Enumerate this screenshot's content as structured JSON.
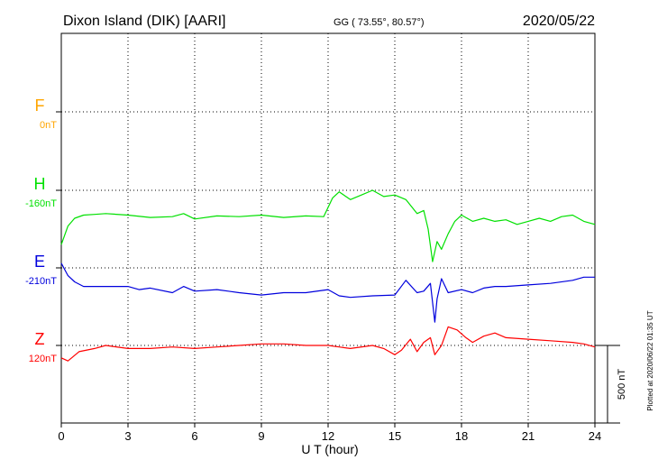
{
  "chart_data": {
    "type": "line",
    "title": "Dixon Island (DIK)  [AARI]",
    "subtitle": "GG ( 73.55°,  80.57°)",
    "date": "2020/05/22",
    "xlabel": "U T (hour)",
    "xlim": [
      0,
      24
    ],
    "xticks": [
      "0",
      "3",
      "6",
      "9",
      "12",
      "15",
      "18",
      "21",
      "24"
    ],
    "grid": true,
    "scale_bar": {
      "label": "500 nT",
      "value": 500
    },
    "footnote": "Plotted at 2020/06/22 01:35 UT",
    "series": [
      {
        "name": "F",
        "baseline_label": "0nT",
        "color": "#ffa500",
        "x": [],
        "y": []
      },
      {
        "name": "H",
        "baseline_label": "-160nT",
        "color": "#00e000",
        "x": [
          0,
          0.3,
          0.6,
          1,
          1.5,
          2,
          3,
          4,
          5,
          5.5,
          6,
          7,
          8,
          9,
          10,
          11,
          11.8,
          12.2,
          12.5,
          13,
          13.5,
          14,
          14.5,
          15,
          15.5,
          16,
          16.3,
          16.5,
          16.7,
          16.9,
          17.1,
          17.4,
          17.7,
          18,
          18.5,
          19,
          19.5,
          20,
          20.5,
          21,
          21.5,
          22,
          22.5,
          23,
          23.5,
          24
        ],
        "y": [
          -350,
          -230,
          -180,
          -160,
          -155,
          -150,
          -160,
          -175,
          -170,
          -150,
          -185,
          -165,
          -170,
          -160,
          -175,
          -165,
          -170,
          -50,
          -10,
          -60,
          -30,
          0,
          -40,
          -30,
          -60,
          -150,
          -130,
          -250,
          -460,
          -330,
          -380,
          -280,
          -200,
          -160,
          -200,
          -180,
          -200,
          -190,
          -220,
          -200,
          -180,
          -200,
          -170,
          -160,
          -200,
          -220
        ]
      },
      {
        "name": "E",
        "baseline_label": "-210nT",
        "color": "#0000dd",
        "x": [
          0,
          0.3,
          0.6,
          1,
          1.5,
          2,
          3,
          3.5,
          4,
          5,
          5.5,
          6,
          7,
          8,
          9,
          10,
          11,
          12,
          12.5,
          13,
          14,
          15,
          15.5,
          16,
          16.3,
          16.6,
          16.8,
          16.9,
          17.1,
          17.4,
          18,
          18.5,
          19,
          19.5,
          20,
          21,
          22,
          23,
          23.5,
          24
        ],
        "y": [
          30,
          -50,
          -90,
          -120,
          -120,
          -120,
          -120,
          -140,
          -130,
          -160,
          -120,
          -150,
          -140,
          -160,
          -175,
          -160,
          -160,
          -140,
          -180,
          -190,
          -180,
          -175,
          -80,
          -160,
          -150,
          -100,
          -350,
          -200,
          -70,
          -160,
          -140,
          -160,
          -130,
          -120,
          -120,
          -110,
          -100,
          -80,
          -60,
          -60
        ]
      },
      {
        "name": "Z",
        "baseline_label": "120nT",
        "color": "#ff0000",
        "x": [
          0,
          0.3,
          0.8,
          1.5,
          2,
          3,
          4,
          5,
          6,
          7,
          8,
          9,
          10,
          11,
          12,
          12.5,
          13,
          14,
          14.5,
          15,
          15.3,
          15.7,
          16,
          16.3,
          16.6,
          16.8,
          17.1,
          17.4,
          17.8,
          18.2,
          18.5,
          19,
          19.5,
          20,
          21,
          22,
          23,
          23.5,
          24
        ],
        "y": [
          -80,
          -100,
          -40,
          -20,
          0,
          -20,
          -20,
          -10,
          -20,
          -10,
          0,
          10,
          10,
          0,
          0,
          -10,
          -20,
          0,
          -20,
          -60,
          -30,
          40,
          -40,
          20,
          50,
          -60,
          0,
          120,
          100,
          50,
          20,
          60,
          80,
          50,
          40,
          30,
          20,
          10,
          -10
        ]
      }
    ]
  }
}
